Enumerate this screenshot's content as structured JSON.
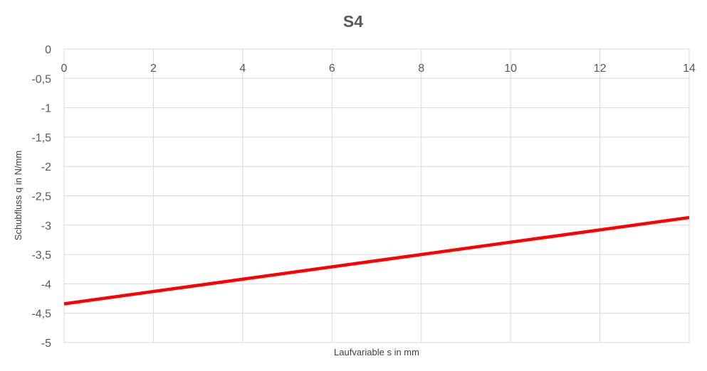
{
  "chart_data": {
    "type": "line",
    "title": "S4",
    "xlabel": "Laufvariable s in mm",
    "ylabel": "Schubfluss q in N/mm",
    "xlim": [
      0,
      14
    ],
    "ylim": [
      -5,
      0
    ],
    "x_ticks": [
      0,
      2,
      4,
      6,
      8,
      10,
      12,
      14
    ],
    "x_tick_labels": [
      "0",
      "2",
      "4",
      "6",
      "8",
      "10",
      "12",
      "14"
    ],
    "y_ticks": [
      0,
      -0.5,
      -1,
      -1.5,
      -2,
      -2.5,
      -3,
      -3.5,
      -4,
      -4.5,
      -5
    ],
    "y_tick_labels": [
      "0",
      "-0,5",
      "-1",
      "-1,5",
      "-2",
      "-2,5",
      "-3",
      "-3,5",
      "-4",
      "-4,5",
      "-5"
    ],
    "x_axis_position": "top",
    "grid": true,
    "legend": false,
    "series": [
      {
        "color": "#ff0000",
        "x": [
          0,
          14
        ],
        "y": [
          -4.34,
          -2.87
        ]
      }
    ]
  }
}
